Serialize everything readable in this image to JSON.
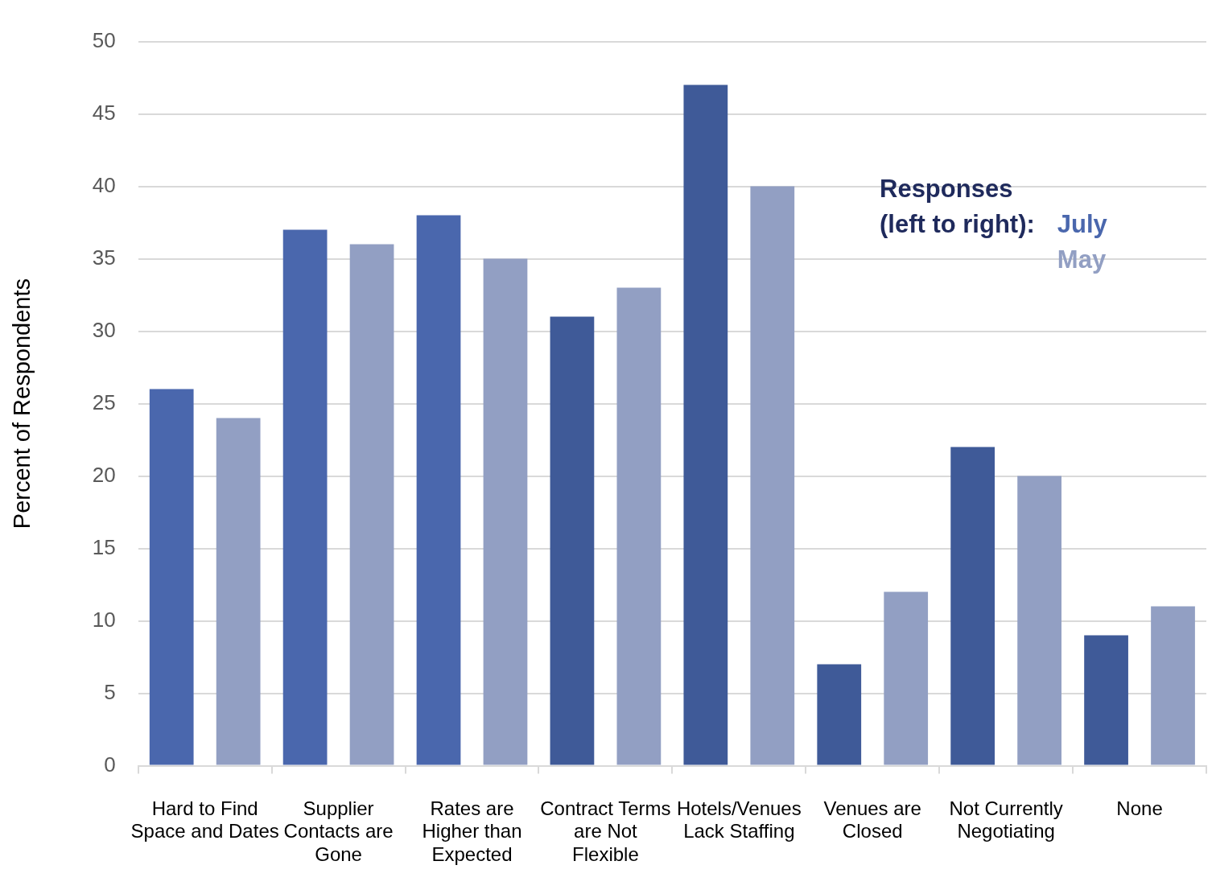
{
  "chart_data": {
    "type": "bar",
    "ylabel": "Percent of Respondents",
    "legend_title": "Responses (left to right):",
    "legend": "top right",
    "grid": "y",
    "categories": [
      "Hard to Find Space and Dates",
      "Supplier Contacts are Gone",
      "Rates are Higher than Expected",
      "Contract Terms are Not Flexible",
      "Hotels/Venues Lack Staffing",
      "Venues are Closed",
      "Not Currently Negotiating",
      "None"
    ],
    "series": [
      {
        "name": "July",
        "color": "#4a67ad",
        "colors": [
          "#4a67ad",
          "#4a67ad",
          "#4a67ad",
          "#3f5a98",
          "#3f5a98",
          "#3f5a98",
          "#3f5a98",
          "#3f5a98"
        ],
        "values": [
          26,
          37,
          38,
          31,
          47,
          7,
          22,
          9
        ]
      },
      {
        "name": "May",
        "color": "#929fc3",
        "values": [
          24,
          36,
          35,
          33,
          40,
          12,
          20,
          11
        ]
      }
    ],
    "ylim": [
      0,
      50
    ],
    "yticks": [
      0,
      5,
      10,
      15,
      20,
      25,
      30,
      35,
      40,
      45,
      50
    ]
  }
}
